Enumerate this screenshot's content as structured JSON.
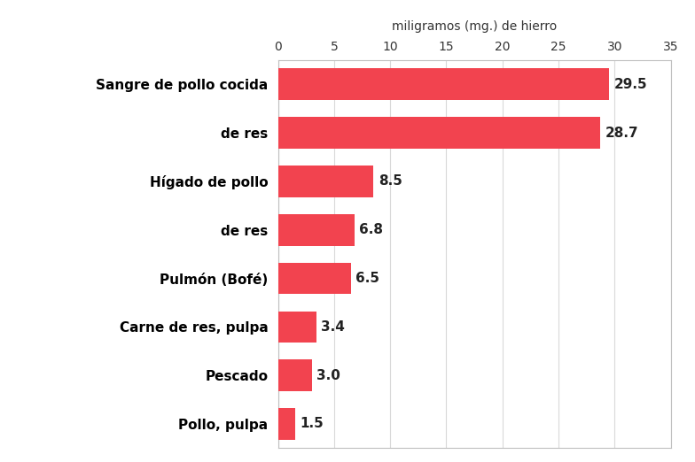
{
  "chart_data": {
    "type": "bar",
    "orientation": "horizontal",
    "x_label": "miligramos (mg.) de hierro",
    "categories": [
      "Sangre de pollo cocida",
      "de res",
      "Hígado de pollo",
      "de res",
      "Pulmón (Bofé)",
      "Carne de res, pulpa",
      "Pescado",
      "Pollo, pulpa"
    ],
    "values": [
      29.5,
      28.7,
      8.5,
      6.8,
      6.5,
      3.4,
      3.0,
      1.5
    ],
    "value_labels": [
      "29.5",
      "28.7",
      "8.5",
      "6.8",
      "6.5",
      "3.4",
      "3.0",
      "1.5"
    ],
    "color": "#f2434f",
    "xlim": [
      0,
      35
    ],
    "xticks": [
      0,
      5,
      10,
      15,
      20,
      25,
      30,
      35
    ],
    "grid": true,
    "data_labels": true
  }
}
